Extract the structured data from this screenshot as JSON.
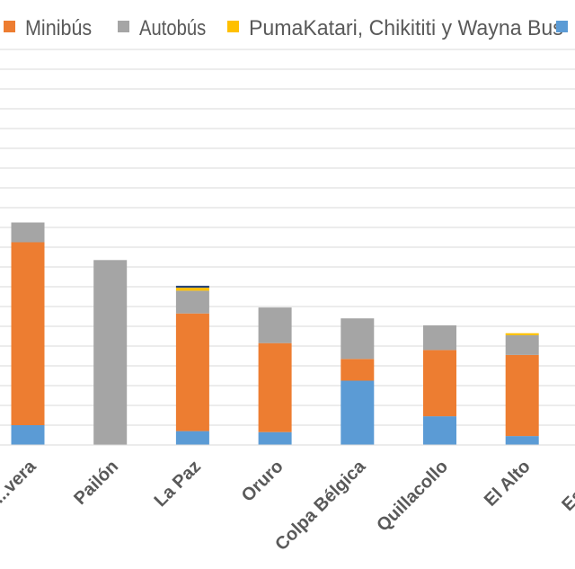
{
  "chart_data": {
    "type": "bar",
    "stacked": true,
    "categories": [
      "...vera",
      "Pailón",
      "La Paz",
      "Oruro",
      "Colpa Bélgica",
      "Quillacollo",
      "El Alto",
      "Esme..."
    ],
    "series": [
      {
        "name": "",
        "color": "#5b9bd5",
        "values": [
          1.0,
          0.0,
          0.7,
          0.65,
          3.25,
          1.45,
          0.45,
          null
        ]
      },
      {
        "name": "Minibús",
        "color": "#ed7d31",
        "values": [
          9.25,
          0.0,
          5.95,
          4.5,
          1.1,
          3.35,
          4.1,
          null
        ]
      },
      {
        "name": "Autobús",
        "color": "#a5a5a5",
        "values": [
          1.0,
          9.35,
          1.15,
          1.8,
          2.05,
          1.25,
          1.0,
          null
        ]
      },
      {
        "name": "PumaKatari, Chikititi y Wayna Bus",
        "color": "#ffc000",
        "values": [
          0.0,
          0.0,
          0.15,
          0.0,
          0.0,
          0.0,
          0.1,
          null
        ]
      },
      {
        "name": "",
        "color": "#264478",
        "values": [
          0.0,
          0.0,
          0.1,
          0.0,
          0.0,
          0.0,
          0.0,
          null
        ]
      }
    ],
    "ylim": [
      0,
      20
    ],
    "grid": true,
    "legend_position": "top",
    "legend_labels": [
      "Minibús",
      "Autobús",
      "PumaKatari, Chikititi y Wayna Bus"
    ],
    "legend_swatch_colors": [
      "#ed7d31",
      "#a5a5a5",
      "#ffc000",
      "#5b9bd5"
    ]
  }
}
